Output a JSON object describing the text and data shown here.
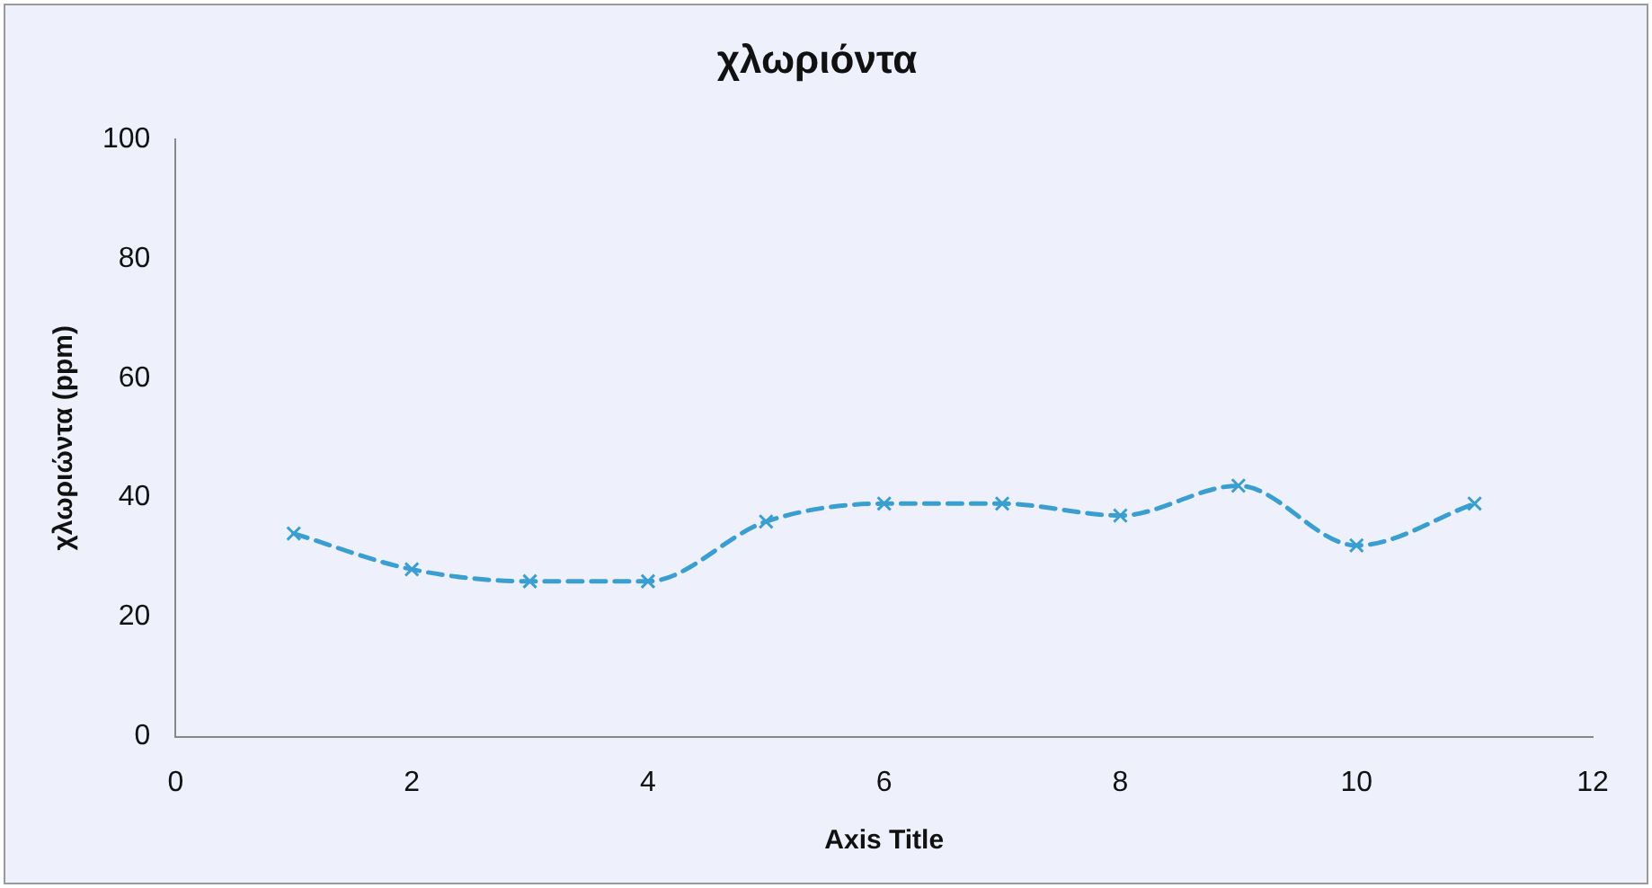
{
  "chart_data": {
    "type": "line",
    "title": "χλωριόντα",
    "xlabel": "Axis Title",
    "ylabel": "χλωριώντα (ppm)",
    "x": [
      1,
      2,
      3,
      4,
      5,
      6,
      7,
      8,
      9,
      10,
      11
    ],
    "series": [
      {
        "color": "#3a9fd0",
        "values": [
          34,
          28,
          26,
          26,
          36,
          39,
          39,
          37,
          42,
          32,
          39
        ]
      }
    ],
    "xlim": [
      0,
      12
    ],
    "xticks": [
      0,
      2,
      4,
      6,
      8,
      10,
      12
    ],
    "ylim": [
      0,
      100
    ],
    "yticks": [
      0,
      20,
      40,
      60,
      80,
      100
    ],
    "grid": false,
    "legend": false,
    "marker": "cross",
    "line_style": "dashed"
  }
}
